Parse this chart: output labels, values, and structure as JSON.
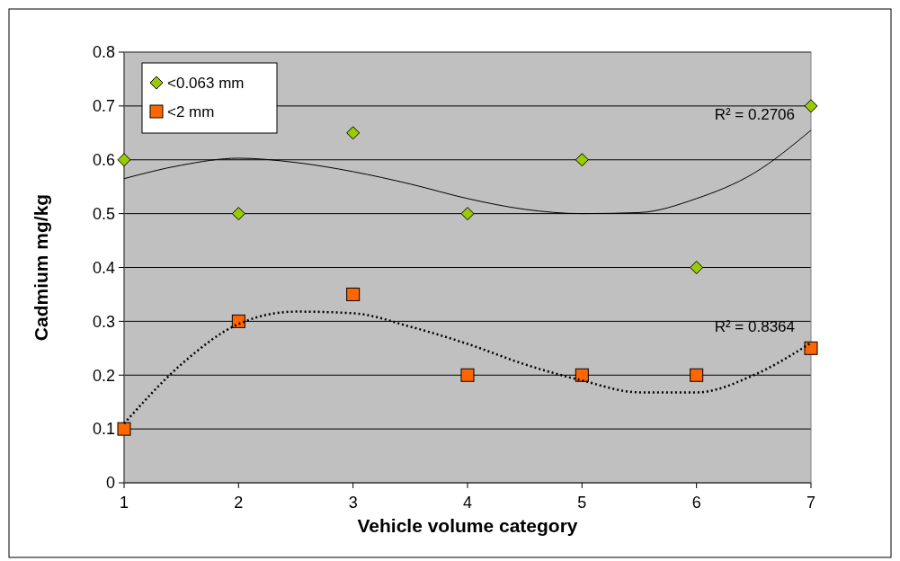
{
  "chart_data": {
    "type": "scatter",
    "xlabel": "Vehicle volume category",
    "ylabel": "Cadmium mg/kg",
    "xlim": [
      1,
      7
    ],
    "xticks": [
      1,
      2,
      3,
      4,
      5,
      6,
      7
    ],
    "ylim": [
      0,
      0.8
    ],
    "yticks": [
      0,
      0.1,
      0.2,
      0.3,
      0.4,
      0.5,
      0.6,
      0.7,
      0.8
    ],
    "grid": "y",
    "legend": "top left",
    "x": [
      1,
      2,
      3,
      4,
      5,
      6,
      7
    ],
    "series": [
      {
        "name": "<0.063 mm",
        "marker": "diamond",
        "color": "#99cc00",
        "values": [
          0.6,
          0.5,
          0.65,
          0.5,
          0.6,
          0.4,
          0.7
        ]
      },
      {
        "name": "<2 mm",
        "marker": "square",
        "color": "#ff6600",
        "values": [
          0.1,
          0.3,
          0.35,
          0.2,
          0.2,
          0.2,
          0.25
        ]
      },
      {
        "type": "line",
        "line_style": "solid",
        "color": "#000000",
        "x": [
          1,
          1.5,
          2,
          2.5,
          3,
          3.5,
          4,
          4.5,
          5,
          5.5,
          6,
          6.5,
          7
        ],
        "values": [
          0.565,
          0.59,
          0.603,
          0.595,
          0.578,
          0.555,
          0.528,
          0.508,
          0.5,
          0.502,
          0.528,
          0.575,
          0.655
        ]
      },
      {
        "type": "line",
        "line_style": "dotted",
        "color": "#000000",
        "x": [
          1,
          1.5,
          2,
          2.5,
          3,
          3.5,
          4,
          4.5,
          5,
          5.5,
          6,
          6.5,
          7
        ],
        "values": [
          0.11,
          0.22,
          0.295,
          0.318,
          0.315,
          0.29,
          0.258,
          0.22,
          0.19,
          0.168,
          0.168,
          0.2,
          0.26
        ]
      }
    ],
    "annotations": [
      {
        "text": "R² = 0.2706",
        "x": 7,
        "y": 0.655
      },
      {
        "text": "R² = 0.8364",
        "x": 7,
        "y": 0.26
      }
    ]
  }
}
